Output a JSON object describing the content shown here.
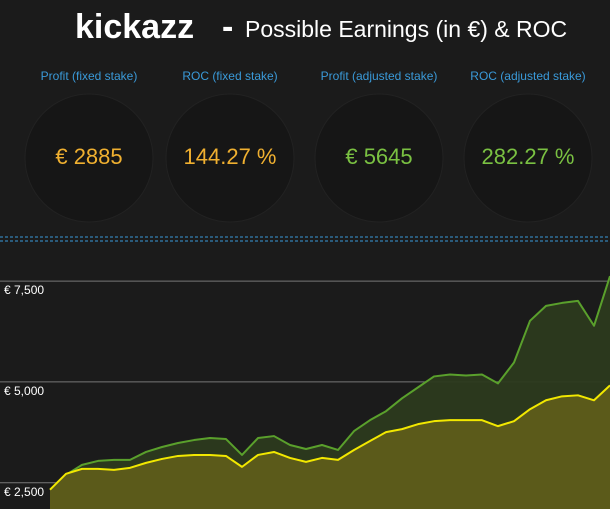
{
  "header": {
    "title": "kickazz",
    "dash": "-",
    "subtitle": "Possible Earnings (in €) & ROC"
  },
  "kpis": [
    {
      "label": "Profit (fixed stake)",
      "value": "€ 2885",
      "color": "#f0b030"
    },
    {
      "label": "ROC (fixed stake)",
      "value": "144.27 %",
      "color": "#f0b030"
    },
    {
      "label": "Profit (adjusted stake)",
      "value": "€ 5645",
      "color": "#7ac142"
    },
    {
      "label": "ROC (adjusted stake)",
      "value": "282.27 %",
      "color": "#7ac142"
    }
  ],
  "chart_data": {
    "type": "area",
    "ylim": [
      1850,
      8270
    ],
    "yticks": [
      {
        "value": 2500,
        "label": "€ 2,500"
      },
      {
        "value": 5000,
        "label": "€ 5,000"
      },
      {
        "value": 7500,
        "label": "€ 7,500"
      }
    ],
    "grid": true,
    "series": [
      {
        "color": "#5aa02c",
        "fill": "#2c3a1e",
        "values": [
          2328,
          2697,
          2944,
          3042,
          3067,
          3067,
          3264,
          3387,
          3486,
          3559,
          3609,
          3584,
          3190,
          3609,
          3658,
          3436,
          3338,
          3436,
          3313,
          3781,
          4052,
          4274,
          4594,
          4865,
          5136,
          5185,
          5160,
          5185,
          4963,
          5481,
          6515,
          6884,
          6958,
          7008,
          6392,
          7623
        ]
      },
      {
        "color": "#f2e800",
        "fill": "#5e5c1a",
        "values": [
          2328,
          2722,
          2845,
          2845,
          2820,
          2870,
          2993,
          3091,
          3165,
          3190,
          3190,
          3165,
          2894,
          3190,
          3264,
          3116,
          3018,
          3116,
          3067,
          3313,
          3535,
          3756,
          3830,
          3953,
          4027,
          4052,
          4052,
          4052,
          3904,
          4027,
          4323,
          4545,
          4643,
          4668,
          4545,
          4914
        ]
      }
    ]
  }
}
